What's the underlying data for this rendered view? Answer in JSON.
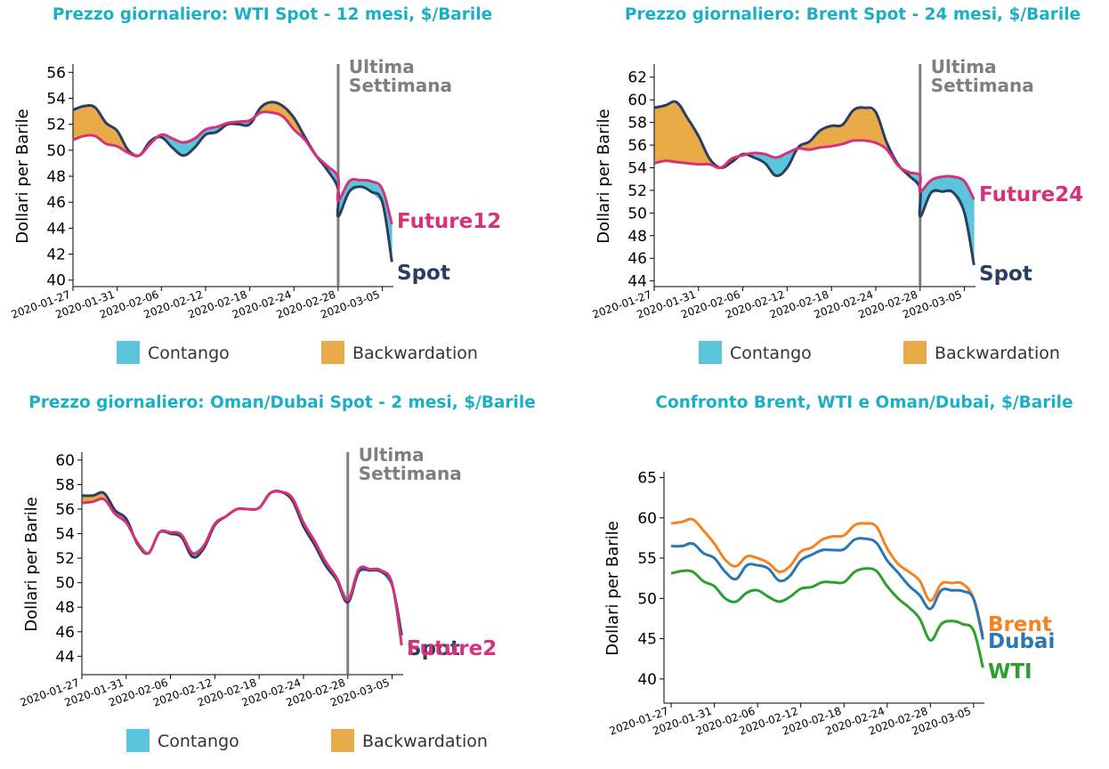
{
  "chart_data": [
    {
      "type": "line",
      "title": "Prezzo giornaliero: WTI Spot - 12 mesi, $/Barile",
      "ylabel": "Dollari per Barile",
      "ylim": [
        39.5,
        56.5
      ],
      "yticks": [
        40,
        42,
        44,
        46,
        48,
        50,
        52,
        54,
        56
      ],
      "x": [
        0,
        1,
        2,
        3,
        4,
        5,
        6,
        7,
        8,
        9,
        10,
        11,
        12,
        13,
        14,
        15,
        16,
        17,
        18,
        19,
        20,
        21,
        22,
        23,
        24,
        25,
        26,
        27,
        28,
        29,
        30,
        31,
        32,
        33,
        34,
        35,
        36,
        37,
        38,
        39,
        40
      ],
      "xticks": [
        "2020-01-27",
        "2020-01-31",
        "2020-02-06",
        "2020-02-12",
        "2020-02-18",
        "2020-02-24",
        "2020-02-28",
        "2020-03-05"
      ],
      "xtick_pos": [
        0,
        6,
        12,
        18,
        24,
        30,
        36,
        42
      ],
      "xlim": [
        0,
        43.5
      ],
      "vline": 36,
      "vline_label": [
        "Ultima",
        "Settimana"
      ],
      "series": [
        {
          "name": "Spot",
          "label": "Spot",
          "color": "#2b3d63",
          "values": [
            53.1,
            53.4,
            53.3,
            52.1,
            51.5,
            50.0,
            49.6,
            50.7,
            51.0,
            50.2,
            49.6,
            50.2,
            51.2,
            51.4,
            52.0,
            52.0,
            52.0,
            53.3,
            53.7,
            53.4,
            52.5,
            51.0,
            49.6,
            48.5,
            47.0,
            44.9,
            46.8,
            47.2,
            46.8,
            46.0,
            41.4
          ],
          "x": [
            0,
            1.5,
            3,
            4.5,
            6,
            7.5,
            9,
            10.5,
            12,
            13.5,
            15,
            16.5,
            18,
            19.5,
            21,
            22.5,
            24,
            25.5,
            27,
            28.5,
            30,
            31.5,
            33,
            34.5,
            36,
            36,
            37.5,
            39,
            40.5,
            42,
            43.3
          ]
        },
        {
          "name": "Future12",
          "label": "Future12",
          "color": "#d6317a",
          "values": [
            50.8,
            51.1,
            51.1,
            50.5,
            50.3,
            49.8,
            49.6,
            50.5,
            51.2,
            50.9,
            50.6,
            50.9,
            51.6,
            51.8,
            52.1,
            52.2,
            52.3,
            52.9,
            52.9,
            52.6,
            51.6,
            50.8,
            49.6,
            48.8,
            47.9,
            46.1,
            47.6,
            47.7,
            47.6,
            47.0,
            44.3
          ],
          "x": [
            0,
            1.5,
            3,
            4.5,
            6,
            7.5,
            9,
            10.5,
            12,
            13.5,
            15,
            16.5,
            18,
            19.5,
            21,
            22.5,
            24,
            25.5,
            27,
            28.5,
            30,
            31.5,
            33,
            34.5,
            36,
            36,
            37.5,
            39,
            40.5,
            42,
            43.3
          ]
        }
      ],
      "legend": [
        "Contango",
        "Backwardation"
      ],
      "legend_colors": {
        "contango": "#5bc5dc",
        "backwardation": "#e8ab47"
      }
    },
    {
      "type": "line",
      "title": "Prezzo giornaliero: Brent Spot - 24 mesi, $/Barile",
      "ylabel": "Dollari per Barile",
      "ylim": [
        43.5,
        63
      ],
      "yticks": [
        44,
        46,
        48,
        50,
        52,
        54,
        56,
        58,
        60,
        62
      ],
      "xticks": [
        "2020-01-27",
        "2020-01-31",
        "2020-02-06",
        "2020-02-12",
        "2020-02-18",
        "2020-02-24",
        "2020-02-28",
        "2020-03-05"
      ],
      "xtick_pos": [
        0,
        6,
        12,
        18,
        24,
        30,
        36,
        42
      ],
      "xlim": [
        0,
        43.5
      ],
      "vline": 36,
      "vline_label": [
        "Ultima",
        "Settimana"
      ],
      "series": [
        {
          "name": "Spot",
          "label": "Spot",
          "color": "#2b3d63",
          "values": [
            59.3,
            59.5,
            59.8,
            58.4,
            56.8,
            54.8,
            54.0,
            54.5,
            55.2,
            54.9,
            54.4,
            53.3,
            54.0,
            55.8,
            56.3,
            57.3,
            57.7,
            57.8,
            59.1,
            59.3,
            58.9,
            56.2,
            54.3,
            53.3,
            52.2,
            49.7,
            51.8,
            51.9,
            51.8,
            50.0,
            45.4
          ],
          "x": [
            0,
            1.5,
            3,
            4.5,
            6,
            7.5,
            9,
            10.5,
            12,
            13.5,
            15,
            16.5,
            18,
            19.5,
            21,
            22.5,
            24,
            25.5,
            27,
            28.5,
            30,
            31.5,
            33,
            34.5,
            36,
            36,
            37.5,
            39,
            40.5,
            42,
            43.3
          ]
        },
        {
          "name": "Future24",
          "label": "Future24",
          "color": "#d6317a",
          "values": [
            54.4,
            54.6,
            54.5,
            54.4,
            54.3,
            54.3,
            54.0,
            54.8,
            55.1,
            55.3,
            55.2,
            54.9,
            55.3,
            55.7,
            55.6,
            55.8,
            55.9,
            56.1,
            56.4,
            56.4,
            56.2,
            55.6,
            54.2,
            53.6,
            53.3,
            51.9,
            52.9,
            53.2,
            53.2,
            52.8,
            51.2
          ],
          "x": [
            0,
            1.5,
            3,
            4.5,
            6,
            7.5,
            9,
            10.5,
            12,
            13.5,
            15,
            16.5,
            18,
            19.5,
            21,
            22.5,
            24,
            25.5,
            27,
            28.5,
            30,
            31.5,
            33,
            34.5,
            36,
            36,
            37.5,
            39,
            40.5,
            42,
            43.3
          ]
        }
      ],
      "legend": [
        "Contango",
        "Backwardation"
      ],
      "legend_colors": {
        "contango": "#5bc5dc",
        "backwardation": "#e8ab47"
      }
    },
    {
      "type": "line",
      "title": "Prezzo giornaliero: Oman/Dubai Spot - 2 mesi, $/Barile",
      "ylabel": "Dollari per Barile",
      "ylim": [
        42.5,
        60.5
      ],
      "yticks": [
        44,
        46,
        48,
        50,
        52,
        54,
        56,
        58,
        60
      ],
      "xticks": [
        "2020-01-27",
        "2020-01-31",
        "2020-02-06",
        "2020-02-12",
        "2020-02-18",
        "2020-02-24",
        "2020-02-28",
        "2020-03-05"
      ],
      "xtick_pos": [
        0,
        6,
        12,
        18,
        24,
        30,
        36,
        42
      ],
      "xlim": [
        0,
        43.5
      ],
      "vline": 36,
      "vline_label": [
        "Ultima",
        "Settimana"
      ],
      "series": [
        {
          "name": "Spot",
          "label": "Spot",
          "color": "#2b3d63",
          "values": [
            57.1,
            57.1,
            57.3,
            55.9,
            55.2,
            53.2,
            52.4,
            54.1,
            54.0,
            53.7,
            52.1,
            52.8,
            54.7,
            55.4,
            56.0,
            56.0,
            56.1,
            57.3,
            57.4,
            56.7,
            54.6,
            53.1,
            51.4,
            50.2,
            48.4,
            50.9,
            51.0,
            50.9,
            49.8,
            45.7
          ],
          "x": [
            0,
            1.5,
            3,
            4.5,
            6,
            7.5,
            9,
            10.5,
            12,
            13.5,
            15,
            16.5,
            18,
            19.5,
            21,
            22.5,
            24,
            25.5,
            27,
            28.5,
            30,
            31.5,
            33,
            34.5,
            36,
            37.5,
            39,
            40.5,
            42,
            43.3
          ]
        },
        {
          "name": "Future2",
          "label": "Future2",
          "color": "#d6317a",
          "values": [
            56.5,
            56.6,
            56.8,
            55.6,
            54.9,
            53.3,
            52.4,
            54.1,
            54.1,
            53.9,
            52.4,
            53.0,
            54.8,
            55.4,
            56.0,
            56.0,
            56.1,
            57.3,
            57.4,
            56.9,
            54.9,
            53.4,
            51.7,
            50.4,
            48.6,
            51.1,
            51.1,
            51.0,
            49.9,
            44.9
          ],
          "x": [
            0,
            1.5,
            3,
            4.5,
            6,
            7.5,
            9,
            10.5,
            12,
            13.5,
            15,
            16.5,
            18,
            19.5,
            21,
            22.5,
            24,
            25.5,
            27,
            28.5,
            30,
            31.5,
            33,
            34.5,
            36,
            37.5,
            39,
            40.5,
            42,
            43.3
          ]
        }
      ],
      "legend": [
        "Contango",
        "Backwardation"
      ],
      "legend_colors": {
        "contango": "#5bc5dc",
        "backwardation": "#e8ab47"
      }
    },
    {
      "type": "line",
      "title": "Confronto Brent, WTI e Oman/Dubai, $/Barile",
      "ylabel": "Dollari per Barile",
      "ylim": [
        37,
        65.5
      ],
      "yticks": [
        40,
        45,
        50,
        55,
        60,
        65
      ],
      "xticks": [
        "2020-01-27",
        "2020-01-31",
        "2020-02-06",
        "2020-02-12",
        "2020-02-18",
        "2020-02-24",
        "2020-02-28",
        "2020-03-05"
      ],
      "xtick_pos": [
        0,
        6,
        12,
        18,
        24,
        30,
        36,
        42
      ],
      "xlim": [
        -1,
        43.5
      ],
      "series": [
        {
          "name": "Brent",
          "label": "Brent",
          "color": "#f5821f",
          "values": [
            59.3,
            59.5,
            59.8,
            58.4,
            56.8,
            54.8,
            54.0,
            55.2,
            55.0,
            54.4,
            53.3,
            54.0,
            55.8,
            56.3,
            57.3,
            57.7,
            57.8,
            59.1,
            59.3,
            58.9,
            56.2,
            54.3,
            53.3,
            52.2,
            49.7,
            51.8,
            51.9,
            51.8,
            50.0,
            45.4
          ],
          "x": [
            0,
            1.5,
            3,
            4.5,
            6,
            7.5,
            9,
            10.5,
            12,
            13.5,
            15,
            16.5,
            18,
            19.5,
            21,
            22.5,
            24,
            25.5,
            27,
            28.5,
            30,
            31.5,
            33,
            34.5,
            36,
            37.5,
            39,
            40.5,
            42,
            43.3
          ]
        },
        {
          "name": "Dubai",
          "label": "Dubai",
          "color": "#2a76b3",
          "values": [
            56.5,
            56.5,
            56.8,
            55.6,
            55.0,
            53.3,
            52.4,
            54.1,
            54.1,
            53.7,
            52.2,
            52.8,
            54.7,
            55.4,
            56.0,
            56.0,
            56.1,
            57.3,
            57.4,
            56.9,
            54.7,
            53.2,
            51.6,
            50.4,
            48.7,
            51.0,
            51.0,
            50.9,
            49.9,
            44.9
          ],
          "x": [
            0,
            1.5,
            3,
            4.5,
            6,
            7.5,
            9,
            10.5,
            12,
            13.5,
            15,
            16.5,
            18,
            19.5,
            21,
            22.5,
            24,
            25.5,
            27,
            28.5,
            30,
            31.5,
            33,
            34.5,
            36,
            37.5,
            39,
            40.5,
            42,
            43.3
          ]
        },
        {
          "name": "WTI",
          "label": "WTI",
          "color": "#2ca02c",
          "values": [
            53.1,
            53.4,
            53.3,
            52.1,
            51.5,
            50.0,
            49.6,
            50.7,
            51.0,
            50.2,
            49.6,
            50.2,
            51.2,
            51.4,
            52.0,
            52.0,
            52.0,
            53.3,
            53.7,
            53.4,
            51.5,
            50.0,
            48.9,
            47.5,
            44.8,
            46.8,
            47.2,
            46.8,
            46.0,
            41.4
          ],
          "x": [
            0,
            1.5,
            3,
            4.5,
            6,
            7.5,
            9,
            10.5,
            12,
            13.5,
            15,
            16.5,
            18,
            19.5,
            21,
            22.5,
            24,
            25.5,
            27,
            28.5,
            30,
            31.5,
            33,
            34.5,
            36,
            37.5,
            39,
            40.5,
            42,
            43.3
          ]
        }
      ]
    }
  ]
}
